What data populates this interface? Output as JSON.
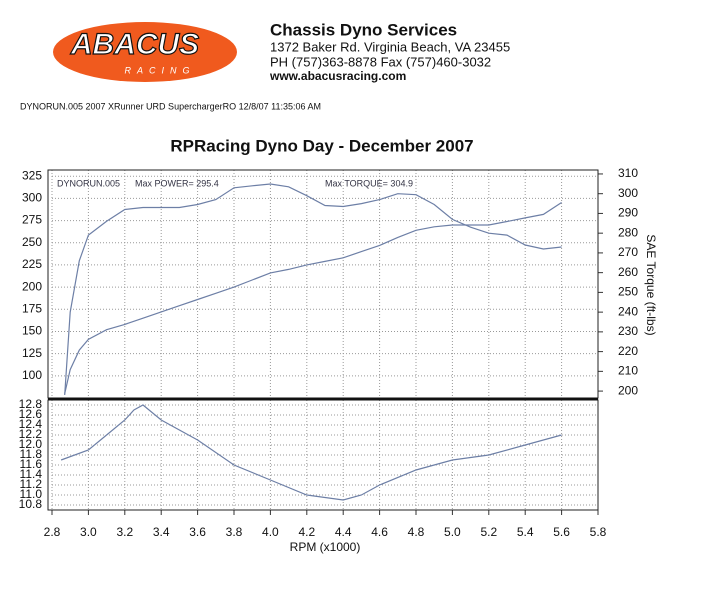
{
  "header": {
    "logo": "ABACUS",
    "logo_sub": "RACING",
    "company": "Chassis Dyno Services",
    "address": "1372 Baker Rd. Virginia Beach, VA 23455",
    "phone": "PH (757)363-8878 Fax (757)460-3032",
    "web": "www.abacusracing.com",
    "run_info": "DYNORUN.005   2007 XRunner URD SuperchargerRO   12/8/07 11:35:06 AM"
  },
  "chart_data": [
    {
      "type": "line",
      "title": "RPRacing Dyno Day - December 2007",
      "y2label": "SAE Torque (ft-lbs)",
      "annotations": [
        "DYNORUN.005",
        "Max POWER= 295.4",
        "Max TORQUE= 304.9"
      ],
      "x": [
        2.87,
        2.9,
        2.95,
        3.0,
        3.1,
        3.2,
        3.3,
        3.4,
        3.5,
        3.6,
        3.7,
        3.8,
        3.9,
        4.0,
        4.1,
        4.2,
        4.3,
        4.4,
        4.5,
        4.6,
        4.7,
        4.8,
        4.9,
        5.0,
        5.1,
        5.2,
        5.3,
        5.4,
        5.5,
        5.6
      ],
      "series": [
        {
          "color": "#6d7fa6",
          "values": [
            80,
            107,
            129,
            141,
            152,
            158,
            165,
            172,
            179,
            186,
            193,
            200,
            208,
            216,
            220,
            225,
            229,
            233,
            240,
            247,
            256,
            264,
            268,
            270,
            270,
            270,
            274,
            278,
            282,
            295.4
          ]
        },
        {
          "color": "#6d7fa6",
          "axis": "y2",
          "values": [
            198,
            240,
            266,
            279,
            286,
            292,
            293,
            293,
            293,
            294.5,
            297,
            303,
            304,
            304.9,
            303.5,
            299,
            294,
            293.5,
            295,
            297,
            300,
            299.5,
            294.5,
            287,
            283,
            280,
            279,
            274,
            272,
            273
          ]
        }
      ],
      "xlim": [
        2.8,
        5.8
      ],
      "ylim": [
        75,
        332
      ],
      "yticks": [
        100,
        125,
        150,
        175,
        200,
        225,
        250,
        275,
        300,
        325
      ],
      "y2lim": [
        196.5,
        312
      ],
      "y2ticks": [
        200,
        210,
        220,
        230,
        240,
        250,
        260,
        270,
        280,
        290,
        300,
        310
      ],
      "grid": true
    },
    {
      "type": "line",
      "xlabel": "RPM (x1000)",
      "x": [
        2.85,
        3.0,
        3.1,
        3.2,
        3.25,
        3.3,
        3.4,
        3.6,
        3.8,
        4.0,
        4.2,
        4.4,
        4.5,
        4.6,
        4.8,
        5.0,
        5.2,
        5.4,
        5.6
      ],
      "series": [
        {
          "color": "#6d7fa6",
          "values": [
            11.7,
            11.9,
            12.2,
            12.5,
            12.7,
            12.8,
            12.5,
            12.1,
            11.6,
            11.3,
            11.0,
            10.9,
            11.0,
            11.2,
            11.5,
            11.7,
            11.8,
            12.0,
            12.2
          ]
        }
      ],
      "xlim": [
        2.8,
        5.8
      ],
      "xticks": [
        2.8,
        {
          "value": 3,
          "label": "3.0"
        },
        3.2,
        3.4,
        3.6,
        3.8,
        {
          "value": 4,
          "label": "4.0"
        },
        4.2,
        4.4,
        4.6,
        4.8,
        {
          "value": 5,
          "label": "5.0"
        },
        5.2,
        5.4,
        5.6,
        5.8
      ],
      "ylim": [
        10.7,
        12.9
      ],
      "yticks": [
        10.8,
        {
          "value": 11,
          "label": "11.0"
        },
        11.2,
        11.4,
        11.6,
        11.8,
        {
          "value": 12,
          "label": "12.0"
        },
        12.2,
        12.4,
        12.6,
        12.8
      ],
      "grid": true
    }
  ]
}
